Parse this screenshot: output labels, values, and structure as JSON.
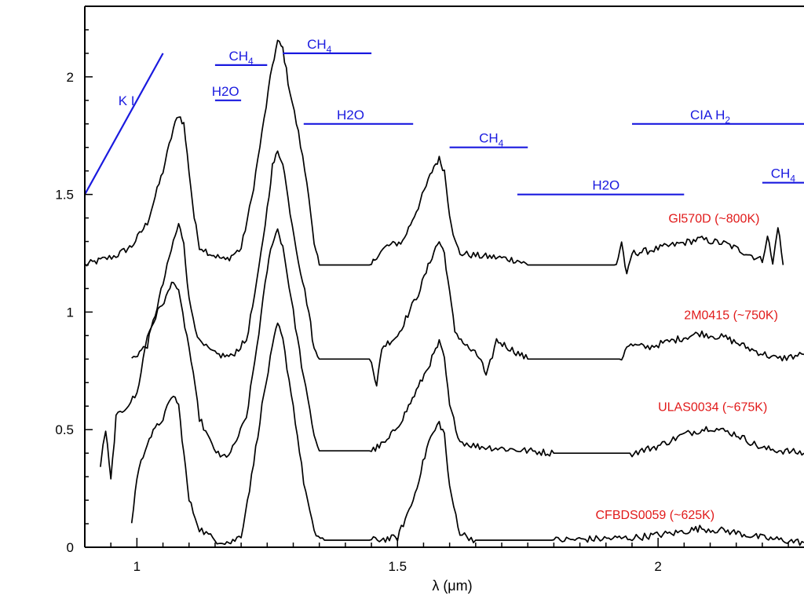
{
  "chart_data": {
    "type": "line",
    "title": "",
    "xlabel": "λ (μm)",
    "ylabel": "",
    "xlim": [
      0.9,
      2.28
    ],
    "ylim": [
      0,
      2.3
    ],
    "grid": false,
    "legend": "none",
    "xticks": [
      {
        "value": 1.0,
        "label": "1"
      },
      {
        "value": 1.5,
        "label": "1.5"
      },
      {
        "value": 2.0,
        "label": "2"
      }
    ],
    "yticks": [
      {
        "value": 0,
        "label": "0"
      },
      {
        "value": 0.5,
        "label": "0.5"
      },
      {
        "value": 1,
        "label": "1"
      },
      {
        "value": 1.5,
        "label": "1.5"
      },
      {
        "value": 2,
        "label": "2"
      }
    ],
    "series": [
      {
        "label": "Gl570D (~800K)",
        "label_pos": [
          2.02,
          1.38
        ],
        "points": [
          [
            0.9,
            1.2
          ],
          [
            0.93,
            1.22
          ],
          [
            0.96,
            1.24
          ],
          [
            0.99,
            1.28
          ],
          [
            1.02,
            1.38
          ],
          [
            1.05,
            1.6
          ],
          [
            1.07,
            1.78
          ],
          [
            1.08,
            1.84
          ],
          [
            1.09,
            1.8
          ],
          [
            1.1,
            1.6
          ],
          [
            1.11,
            1.4
          ],
          [
            1.12,
            1.28
          ],
          [
            1.14,
            1.25
          ],
          [
            1.17,
            1.22
          ],
          [
            1.2,
            1.27
          ],
          [
            1.22,
            1.48
          ],
          [
            1.24,
            1.76
          ],
          [
            1.26,
            2.05
          ],
          [
            1.27,
            2.15
          ],
          [
            1.28,
            2.12
          ],
          [
            1.29,
            1.98
          ],
          [
            1.31,
            1.76
          ],
          [
            1.33,
            1.5
          ],
          [
            1.34,
            1.28
          ],
          [
            1.35,
            1.2
          ],
          [
            1.45,
            1.2
          ],
          [
            1.46,
            1.24
          ],
          [
            1.48,
            1.28
          ],
          [
            1.51,
            1.3
          ],
          [
            1.54,
            1.45
          ],
          [
            1.57,
            1.62
          ],
          [
            1.58,
            1.65
          ],
          [
            1.59,
            1.6
          ],
          [
            1.6,
            1.42
          ],
          [
            1.61,
            1.3
          ],
          [
            1.62,
            1.25
          ],
          [
            1.65,
            1.24
          ],
          [
            1.7,
            1.23
          ],
          [
            1.73,
            1.22
          ],
          [
            1.75,
            1.2
          ],
          [
            1.92,
            1.2
          ],
          [
            1.93,
            1.3
          ],
          [
            1.94,
            1.15
          ],
          [
            1.95,
            1.25
          ],
          [
            1.98,
            1.26
          ],
          [
            2.02,
            1.28
          ],
          [
            2.08,
            1.31
          ],
          [
            2.13,
            1.29
          ],
          [
            2.18,
            1.24
          ],
          [
            2.2,
            1.22
          ],
          [
            2.21,
            1.33
          ],
          [
            2.22,
            1.2
          ],
          [
            2.23,
            1.37
          ],
          [
            2.24,
            1.2
          ]
        ]
      },
      {
        "label": "2M0415 (~750K)",
        "label_pos": [
          2.05,
          0.97
        ],
        "points": [
          [
            0.99,
            0.8
          ],
          [
            1.02,
            0.86
          ],
          [
            1.05,
            1.12
          ],
          [
            1.07,
            1.3
          ],
          [
            1.08,
            1.37
          ],
          [
            1.09,
            1.3
          ],
          [
            1.1,
            1.05
          ],
          [
            1.12,
            0.87
          ],
          [
            1.15,
            0.82
          ],
          [
            1.18,
            0.81
          ],
          [
            1.21,
            0.88
          ],
          [
            1.23,
            1.12
          ],
          [
            1.25,
            1.44
          ],
          [
            1.26,
            1.62
          ],
          [
            1.27,
            1.68
          ],
          [
            1.28,
            1.64
          ],
          [
            1.29,
            1.48
          ],
          [
            1.31,
            1.22
          ],
          [
            1.33,
            1.0
          ],
          [
            1.34,
            0.84
          ],
          [
            1.35,
            0.8
          ],
          [
            1.45,
            0.8
          ],
          [
            1.46,
            0.68
          ],
          [
            1.47,
            0.85
          ],
          [
            1.5,
            0.9
          ],
          [
            1.54,
            1.08
          ],
          [
            1.57,
            1.26
          ],
          [
            1.58,
            1.3
          ],
          [
            1.59,
            1.25
          ],
          [
            1.6,
            1.08
          ],
          [
            1.61,
            0.92
          ],
          [
            1.63,
            0.86
          ],
          [
            1.66,
            0.8
          ],
          [
            1.67,
            0.72
          ],
          [
            1.69,
            0.88
          ],
          [
            1.72,
            0.84
          ],
          [
            1.75,
            0.8
          ],
          [
            1.93,
            0.8
          ],
          [
            1.94,
            0.86
          ],
          [
            1.98,
            0.85
          ],
          [
            2.03,
            0.88
          ],
          [
            2.08,
            0.91
          ],
          [
            2.13,
            0.89
          ],
          [
            2.18,
            0.84
          ],
          [
            2.23,
            0.8
          ],
          [
            2.28,
            0.82
          ]
        ]
      },
      {
        "label": "ULAS0034 (~675K)",
        "label_pos": [
          2.0,
          0.58
        ],
        "points": [
          [
            0.93,
            0.35
          ],
          [
            0.94,
            0.5
          ],
          [
            0.95,
            0.28
          ],
          [
            0.96,
            0.55
          ],
          [
            0.98,
            0.6
          ],
          [
            1.0,
            0.65
          ],
          [
            1.02,
            0.9
          ],
          [
            1.04,
            1.0
          ],
          [
            1.06,
            1.08
          ],
          [
            1.07,
            1.14
          ],
          [
            1.08,
            1.08
          ],
          [
            1.1,
            0.85
          ],
          [
            1.12,
            0.55
          ],
          [
            1.14,
            0.45
          ],
          [
            1.16,
            0.38
          ],
          [
            1.18,
            0.4
          ],
          [
            1.21,
            0.55
          ],
          [
            1.23,
            0.85
          ],
          [
            1.25,
            1.18
          ],
          [
            1.26,
            1.3
          ],
          [
            1.27,
            1.35
          ],
          [
            1.28,
            1.28
          ],
          [
            1.3,
            1.0
          ],
          [
            1.32,
            0.72
          ],
          [
            1.34,
            0.48
          ],
          [
            1.35,
            0.41
          ],
          [
            1.45,
            0.41
          ],
          [
            1.48,
            0.45
          ],
          [
            1.51,
            0.55
          ],
          [
            1.54,
            0.68
          ],
          [
            1.57,
            0.82
          ],
          [
            1.58,
            0.87
          ],
          [
            1.59,
            0.8
          ],
          [
            1.6,
            0.6
          ],
          [
            1.62,
            0.45
          ],
          [
            1.65,
            0.43
          ],
          [
            1.7,
            0.42
          ],
          [
            1.8,
            0.4
          ],
          [
            1.95,
            0.4
          ],
          [
            2.0,
            0.43
          ],
          [
            2.05,
            0.48
          ],
          [
            2.1,
            0.51
          ],
          [
            2.15,
            0.48
          ],
          [
            2.2,
            0.42
          ],
          [
            2.28,
            0.4
          ]
        ]
      },
      {
        "label": "CFBDS0059 (~625K)",
        "label_pos": [
          1.88,
          0.12
        ],
        "points": [
          [
            0.99,
            0.1
          ],
          [
            1.0,
            0.3
          ],
          [
            1.02,
            0.45
          ],
          [
            1.05,
            0.55
          ],
          [
            1.07,
            0.65
          ],
          [
            1.08,
            0.6
          ],
          [
            1.09,
            0.4
          ],
          [
            1.1,
            0.2
          ],
          [
            1.12,
            0.08
          ],
          [
            1.15,
            0.03
          ],
          [
            1.18,
            0.02
          ],
          [
            1.2,
            0.05
          ],
          [
            1.22,
            0.3
          ],
          [
            1.24,
            0.6
          ],
          [
            1.26,
            0.85
          ],
          [
            1.27,
            0.95
          ],
          [
            1.28,
            0.88
          ],
          [
            1.3,
            0.6
          ],
          [
            1.32,
            0.28
          ],
          [
            1.34,
            0.06
          ],
          [
            1.36,
            0.03
          ],
          [
            1.45,
            0.03
          ],
          [
            1.5,
            0.04
          ],
          [
            1.53,
            0.2
          ],
          [
            1.56,
            0.45
          ],
          [
            1.58,
            0.53
          ],
          [
            1.59,
            0.48
          ],
          [
            1.6,
            0.25
          ],
          [
            1.62,
            0.06
          ],
          [
            1.65,
            0.03
          ],
          [
            1.8,
            0.03
          ],
          [
            1.95,
            0.04
          ],
          [
            2.03,
            0.06
          ],
          [
            2.08,
            0.08
          ],
          [
            2.13,
            0.07
          ],
          [
            2.2,
            0.04
          ],
          [
            2.28,
            0.02
          ]
        ]
      }
    ],
    "features": [
      {
        "label": "K I",
        "kind": "diagonal",
        "line": [
          [
            0.9,
            1.5
          ],
          [
            1.05,
            2.1
          ]
        ],
        "label_pos": [
          0.98,
          1.88
        ]
      },
      {
        "label": "CH4",
        "line": [
          [
            1.15,
            2.05
          ],
          [
            1.25,
            2.05
          ]
        ],
        "label_pos": [
          1.2,
          2.07
        ]
      },
      {
        "label": "H2O",
        "line": [
          [
            1.15,
            1.9
          ],
          [
            1.2,
            1.9
          ]
        ],
        "label_pos": [
          1.17,
          1.92
        ]
      },
      {
        "label": "CH4",
        "line": [
          [
            1.28,
            2.1
          ],
          [
            1.45,
            2.1
          ]
        ],
        "label_pos": [
          1.35,
          2.12
        ]
      },
      {
        "label": "H2O",
        "line": [
          [
            1.32,
            1.8
          ],
          [
            1.53,
            1.8
          ]
        ],
        "label_pos": [
          1.41,
          1.82
        ]
      },
      {
        "label": "CH4",
        "line": [
          [
            1.6,
            1.7
          ],
          [
            1.75,
            1.7
          ]
        ],
        "label_pos": [
          1.68,
          1.72
        ]
      },
      {
        "label": "H2O",
        "line": [
          [
            1.73,
            1.5
          ],
          [
            2.05,
            1.5
          ]
        ],
        "label_pos": [
          1.9,
          1.52
        ]
      },
      {
        "label": "CIA H2",
        "line": [
          [
            1.95,
            1.8
          ],
          [
            2.28,
            1.8
          ]
        ],
        "label_pos": [
          2.1,
          1.82
        ]
      },
      {
        "label": "CH4",
        "line": [
          [
            2.2,
            1.55
          ],
          [
            2.28,
            1.55
          ]
        ],
        "label_pos": [
          2.24,
          1.57
        ]
      }
    ],
    "colors": {
      "spectra": "#000000",
      "features": "#1a1adf",
      "labels": "#e11a1a"
    }
  }
}
